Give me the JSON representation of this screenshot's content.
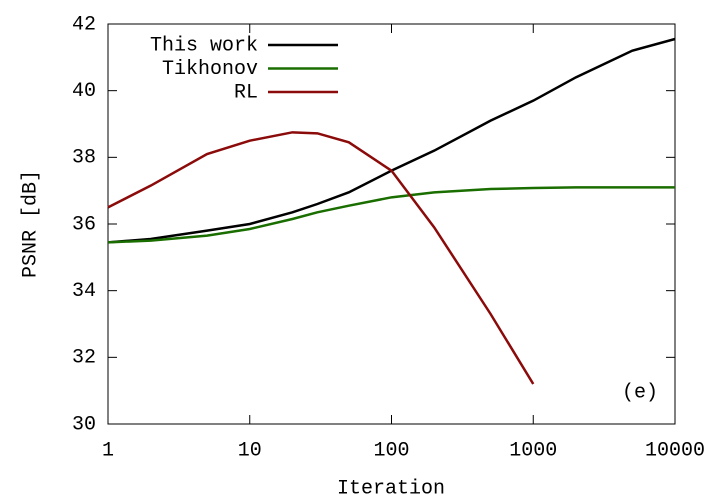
{
  "chart_data": {
    "type": "line",
    "x_label": "Iteration",
    "y_label": "PSNR [dB]",
    "annotation": "(e)",
    "x": [
      1,
      2,
      5,
      10,
      20,
      30,
      50,
      100,
      200,
      500,
      1000,
      2000,
      5000,
      10000
    ],
    "series": [
      {
        "name": "This work",
        "color": "#000000",
        "values": [
          35.45,
          35.55,
          35.8,
          36.0,
          36.35,
          36.6,
          36.95,
          37.6,
          38.2,
          39.1,
          39.7,
          40.4,
          41.2,
          41.55
        ]
      },
      {
        "name": "Tikhonov",
        "color": "#1a6e00",
        "values": [
          35.45,
          35.5,
          35.65,
          35.85,
          36.15,
          36.35,
          36.55,
          36.8,
          36.95,
          37.05,
          37.08,
          37.1,
          37.1,
          37.1
        ]
      },
      {
        "name": "RL",
        "color": "#8b0a0a",
        "values": [
          36.5,
          37.15,
          38.1,
          38.5,
          38.75,
          38.72,
          38.45,
          37.6,
          35.9,
          33.3,
          31.2,
          null,
          null,
          null
        ]
      }
    ],
    "xscale": "log",
    "xlim": [
      1,
      10000
    ],
    "xticks": [
      1,
      10,
      100,
      1000,
      10000
    ],
    "ylim": [
      30,
      42
    ],
    "yticks": [
      30,
      32,
      34,
      36,
      38,
      40,
      42
    ],
    "legend": "upper left"
  }
}
